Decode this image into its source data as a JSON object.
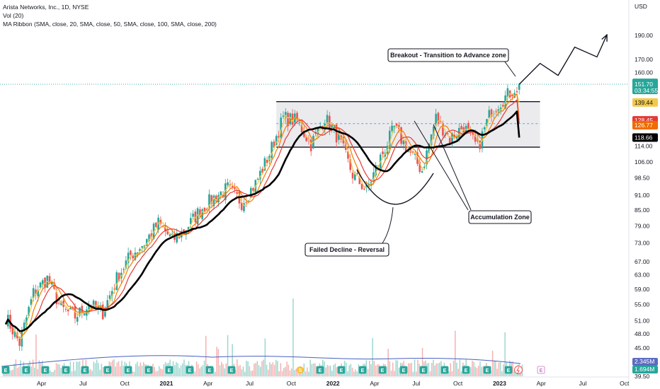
{
  "legend": {
    "symbol": "Arista Networks, Inc., 1D, NYSE",
    "volume": "Vol (20)",
    "ribbon": "MA Ribbon (SMA, close, 20, SMA, close, 50, SMA, close, 100, SMA, close, 200)"
  },
  "chart_data": {
    "type": "candlestick",
    "currency_label": "USD",
    "y_axis": {
      "scale": "log",
      "range": [
        39.5,
        220
      ],
      "ticks": [
        "190.00",
        "170.00",
        "160.00",
        "139.44",
        "114.00",
        "106.00",
        "98.50",
        "91.00",
        "85.00",
        "79.00",
        "73.00",
        "67.00",
        "63.00",
        "59.00",
        "55.00",
        "51.00",
        "48.00",
        "45.00",
        "39.50"
      ]
    },
    "x_axis": {
      "ticks": [
        "Apr",
        "Jul",
        "Oct",
        "2021",
        "Apr",
        "Jul",
        "Oct",
        "2022",
        "Apr",
        "Jul",
        "Oct",
        "2023",
        "Apr",
        "Jul",
        "Oct"
      ]
    },
    "price_points": [
      {
        "m": 0,
        "p": 52
      },
      {
        "m": 1,
        "p": 46
      },
      {
        "m": 2,
        "p": 58
      },
      {
        "m": 3,
        "p": 62
      },
      {
        "m": 4,
        "p": 54
      },
      {
        "m": 5,
        "p": 52
      },
      {
        "m": 6,
        "p": 55
      },
      {
        "m": 7,
        "p": 53
      },
      {
        "m": 8,
        "p": 62
      },
      {
        "m": 9,
        "p": 69
      },
      {
        "m": 10,
        "p": 73
      },
      {
        "m": 11,
        "p": 80
      },
      {
        "m": 12,
        "p": 74
      },
      {
        "m": 13,
        "p": 78
      },
      {
        "m": 14,
        "p": 85
      },
      {
        "m": 15,
        "p": 90
      },
      {
        "m": 16,
        "p": 94
      },
      {
        "m": 17,
        "p": 88
      },
      {
        "m": 18,
        "p": 96
      },
      {
        "m": 19,
        "p": 110
      },
      {
        "m": 20,
        "p": 130
      },
      {
        "m": 21,
        "p": 128
      },
      {
        "m": 22,
        "p": 115
      },
      {
        "m": 23,
        "p": 130
      },
      {
        "m": 24,
        "p": 118
      },
      {
        "m": 25,
        "p": 100
      },
      {
        "m": 26,
        "p": 93
      },
      {
        "m": 27,
        "p": 108
      },
      {
        "m": 28,
        "p": 124
      },
      {
        "m": 29,
        "p": 112
      },
      {
        "m": 30,
        "p": 102
      },
      {
        "m": 31,
        "p": 130
      },
      {
        "m": 32,
        "p": 118
      },
      {
        "m": 33,
        "p": 125
      },
      {
        "m": 34,
        "p": 113
      },
      {
        "m": 35,
        "p": 135
      },
      {
        "m": 36,
        "p": 143
      },
      {
        "m": 37,
        "p": 151.7
      }
    ],
    "moving_averages": [
      {
        "name": "SMA 20",
        "color": "#f2c94c",
        "last": 139.44
      },
      {
        "name": "SMA 50",
        "color": "#f57c00",
        "last": 128.45
      },
      {
        "name": "SMA 100",
        "color": "#e53935",
        "last": 126.77
      },
      {
        "name": "SMA 200",
        "color": "#000000",
        "last": 118.66
      }
    ],
    "projection": [
      {
        "m": 37,
        "p": 151.7
      },
      {
        "m": 38.5,
        "p": 167
      },
      {
        "m": 39.8,
        "p": 158
      },
      {
        "m": 41,
        "p": 180
      },
      {
        "m": 42.6,
        "p": 172
      },
      {
        "m": 43.3,
        "p": 190
      }
    ],
    "range_box": {
      "top": 140,
      "bottom": 113.5,
      "mid": 126.5,
      "m_start": 19.5,
      "m_end": 38.5
    },
    "current_price": {
      "value": "151.70",
      "countdown": "03:34:55"
    },
    "price_badges": [
      {
        "value": "139.44",
        "color": "#f2c94c",
        "text_color": "#131722"
      },
      {
        "value": "128.45",
        "color": "#e53935",
        "text_color": "#ffffff"
      },
      {
        "value": "126.77",
        "color": "#ef6c00",
        "text_color": "#ffffff"
      },
      {
        "value": "118.66",
        "color": "#000000",
        "text_color": "#ffffff"
      }
    ],
    "volume_badges": [
      {
        "value": "2.345M",
        "color": "#5c6bc0"
      },
      {
        "value": "1.694M",
        "color": "#26a69a"
      }
    ],
    "annotations": [
      {
        "id": "breakout",
        "text": "Breakout - Transition to Advance zone"
      },
      {
        "id": "accumulation",
        "text": "Accumulation Zone"
      },
      {
        "id": "failed",
        "text": "Failed Decline - Reversal"
      }
    ],
    "events": [
      "E",
      "E",
      "E",
      "E",
      "E",
      "E",
      "E",
      "E",
      "E",
      "E",
      "E",
      "E",
      "S",
      "E",
      "E",
      "E",
      "E",
      "E",
      "E",
      "E",
      "E",
      "E",
      "E",
      "E"
    ]
  }
}
